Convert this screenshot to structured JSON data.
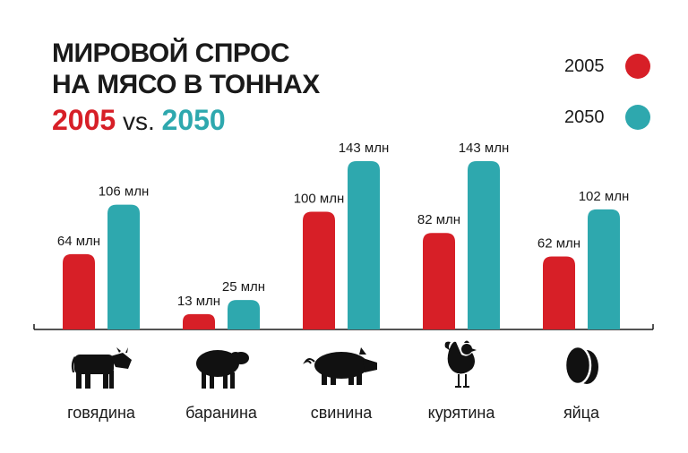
{
  "header": {
    "title_line1": "МИРОВОЙ СПРОС",
    "title_line2": "НА МЯСО В ТОННАХ",
    "subtitle_year1": "2005",
    "subtitle_vs": " vs. ",
    "subtitle_year2": "2050"
  },
  "legend": [
    {
      "label": "2005",
      "color": "#d71f27"
    },
    {
      "label": "2050",
      "color": "#2ea8ae"
    }
  ],
  "chart_data": {
    "type": "bar",
    "categories": [
      "говядина",
      "баранина",
      "свинина",
      "курятина",
      "яйца"
    ],
    "icons": [
      "cow-icon",
      "sheep-icon",
      "pig-icon",
      "chicken-icon",
      "eggs-icon"
    ],
    "series": [
      {
        "name": "2005",
        "color": "#d71f27",
        "values": [
          64,
          13,
          100,
          82,
          62
        ],
        "labels": [
          "64 млн",
          "13 млн",
          "100 млн",
          "82 млн",
          "62 млн"
        ]
      },
      {
        "name": "2050",
        "color": "#2ea8ae",
        "values": [
          106,
          25,
          143,
          143,
          102
        ],
        "labels": [
          "106 млн",
          "25 млн",
          "143 млн",
          "143 млн",
          "102 млн"
        ]
      }
    ],
    "title": "МИРОВОЙ СПРОС НА МЯСО В ТОННАХ",
    "ylim": [
      0,
      150
    ],
    "grid": false,
    "legend_position": "top-right"
  }
}
